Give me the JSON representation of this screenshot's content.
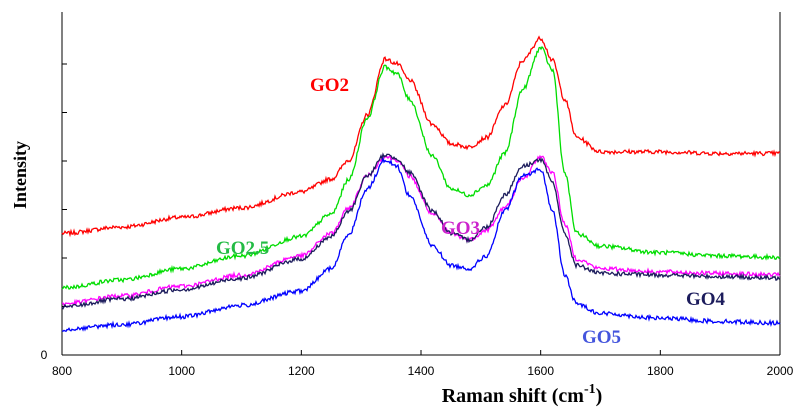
{
  "chart_data": {
    "type": "line",
    "xlabel": "Raman shift (cm",
    "xlabel_superscript": "-1",
    "xlabel_suffix": ")",
    "ylabel": "Intensity",
    "xlim": [
      800,
      2000
    ],
    "ylim": [
      0,
      100
    ],
    "x_ticks": [
      "800",
      "1000",
      "1200",
      "1400",
      "1600",
      "1800",
      "2000"
    ],
    "y_ticks": [
      "0"
    ],
    "grid": false,
    "legend": "labels placed next to curves",
    "series": [
      {
        "name": "GO2",
        "color": "#ff0000",
        "points": [
          [
            800,
            38
          ],
          [
            900,
            40
          ],
          [
            1000,
            43
          ],
          [
            1100,
            46
          ],
          [
            1200,
            51
          ],
          [
            1250,
            55
          ],
          [
            1280,
            61
          ],
          [
            1310,
            75
          ],
          [
            1340,
            92.5
          ],
          [
            1360,
            91
          ],
          [
            1380,
            86
          ],
          [
            1420,
            72
          ],
          [
            1450,
            66
          ],
          [
            1480,
            65
          ],
          [
            1510,
            68
          ],
          [
            1540,
            78
          ],
          [
            1570,
            92
          ],
          [
            1600,
            99
          ],
          [
            1620,
            92
          ],
          [
            1640,
            80
          ],
          [
            1660,
            68
          ],
          [
            1700,
            63.5
          ],
          [
            1800,
            63.5
          ],
          [
            1900,
            63
          ],
          [
            2000,
            63
          ]
        ]
      },
      {
        "name": "GO2.5",
        "color": "#00dd00",
        "points": [
          [
            800,
            21
          ],
          [
            900,
            23.5
          ],
          [
            1000,
            27
          ],
          [
            1100,
            31
          ],
          [
            1200,
            37
          ],
          [
            1250,
            44
          ],
          [
            1280,
            55
          ],
          [
            1310,
            74
          ],
          [
            1340,
            90
          ],
          [
            1360,
            88
          ],
          [
            1380,
            80
          ],
          [
            1420,
            62
          ],
          [
            1450,
            52
          ],
          [
            1480,
            50
          ],
          [
            1510,
            53
          ],
          [
            1540,
            63
          ],
          [
            1570,
            83
          ],
          [
            1600,
            96
          ],
          [
            1620,
            89
          ],
          [
            1640,
            57
          ],
          [
            1660,
            38
          ],
          [
            1700,
            34
          ],
          [
            1800,
            32
          ],
          [
            1900,
            31
          ],
          [
            2000,
            30.5
          ]
        ]
      },
      {
        "name": "GO3",
        "color": "#ff00ff",
        "points": [
          [
            800,
            16
          ],
          [
            900,
            18.5
          ],
          [
            1000,
            21.5
          ],
          [
            1100,
            25
          ],
          [
            1200,
            31
          ],
          [
            1250,
            38
          ],
          [
            1280,
            46
          ],
          [
            1310,
            56
          ],
          [
            1340,
            62
          ],
          [
            1360,
            61
          ],
          [
            1380,
            56
          ],
          [
            1420,
            44
          ],
          [
            1450,
            38
          ],
          [
            1480,
            36
          ],
          [
            1510,
            39
          ],
          [
            1540,
            46
          ],
          [
            1570,
            55
          ],
          [
            1600,
            62
          ],
          [
            1620,
            57
          ],
          [
            1640,
            41
          ],
          [
            1660,
            30
          ],
          [
            1700,
            27
          ],
          [
            1800,
            26
          ],
          [
            1900,
            25.5
          ],
          [
            2000,
            25
          ]
        ]
      },
      {
        "name": "GO4",
        "color": "#1c1c5c",
        "points": [
          [
            800,
            15
          ],
          [
            900,
            17.5
          ],
          [
            1000,
            20.5
          ],
          [
            1100,
            24
          ],
          [
            1200,
            30
          ],
          [
            1250,
            37
          ],
          [
            1280,
            45
          ],
          [
            1310,
            56
          ],
          [
            1340,
            62.5
          ],
          [
            1360,
            61.5
          ],
          [
            1380,
            57
          ],
          [
            1420,
            45
          ],
          [
            1450,
            38
          ],
          [
            1480,
            36
          ],
          [
            1510,
            40
          ],
          [
            1540,
            50
          ],
          [
            1570,
            59
          ],
          [
            1600,
            61
          ],
          [
            1620,
            54
          ],
          [
            1640,
            38
          ],
          [
            1660,
            28
          ],
          [
            1700,
            25.5
          ],
          [
            1800,
            25
          ],
          [
            1900,
            24.5
          ],
          [
            2000,
            24
          ]
        ]
      },
      {
        "name": "GO5",
        "color": "#0000ff",
        "points": [
          [
            800,
            8
          ],
          [
            900,
            9.5
          ],
          [
            1000,
            12
          ],
          [
            1100,
            15.5
          ],
          [
            1200,
            20
          ],
          [
            1250,
            27
          ],
          [
            1280,
            38
          ],
          [
            1310,
            52
          ],
          [
            1340,
            61
          ],
          [
            1360,
            59
          ],
          [
            1380,
            50
          ],
          [
            1420,
            34
          ],
          [
            1450,
            28
          ],
          [
            1480,
            27
          ],
          [
            1510,
            31
          ],
          [
            1540,
            45
          ],
          [
            1570,
            56
          ],
          [
            1600,
            58
          ],
          [
            1620,
            45
          ],
          [
            1640,
            25
          ],
          [
            1660,
            16
          ],
          [
            1700,
            13
          ],
          [
            1800,
            11.5
          ],
          [
            1900,
            10.5
          ],
          [
            2000,
            10
          ]
        ]
      }
    ]
  }
}
